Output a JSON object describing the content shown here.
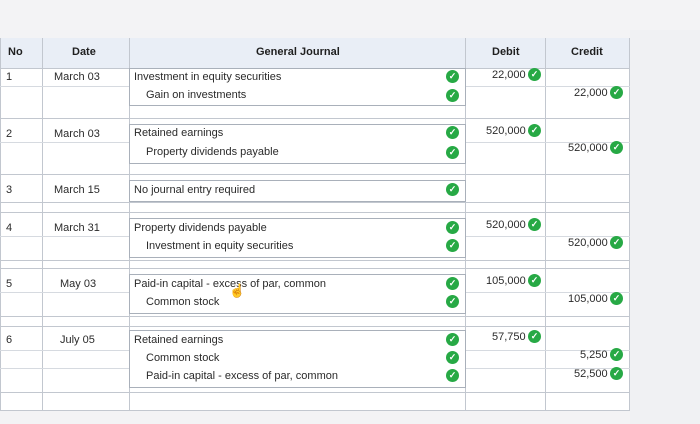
{
  "headers": {
    "no": "No",
    "date": "Date",
    "journal": "General Journal",
    "debit": "Debit",
    "credit": "Credit"
  },
  "rows": [
    {
      "no": "1",
      "date": "March 03",
      "line1": "Investment in equity securities",
      "line2": "Gain on investments",
      "debit": "22,000",
      "credit": "22,000"
    },
    {
      "no": "2",
      "date": "March 03",
      "line1": "Retained earnings",
      "line2": "Property dividends payable",
      "debit": "520,000",
      "credit": "520,000"
    },
    {
      "no": "3",
      "date": "March 15",
      "line1": "No journal entry required"
    },
    {
      "no": "4",
      "date": "March 31",
      "line1": "Property dividends payable",
      "line2": "Investment in equity securities",
      "debit": "520,000",
      "credit": "520,000"
    },
    {
      "no": "5",
      "date": "May 03",
      "line1": "Paid-in capital - excess of par, common",
      "line2": "Common stock",
      "debit": "105,000",
      "credit": "105,000"
    },
    {
      "no": "6",
      "date": "July 05",
      "line1": "Retained earnings",
      "line2": "Common stock",
      "line3": "Paid-in capital - excess of par, common",
      "debit": "57,750",
      "credit2": "5,250",
      "credit3": "52,500"
    }
  ],
  "icons": {
    "check": "check-circle-icon",
    "cursor": "hand-pointer-icon"
  },
  "colors": {
    "check": "#27a945",
    "header_bg": "#e9eef6"
  }
}
